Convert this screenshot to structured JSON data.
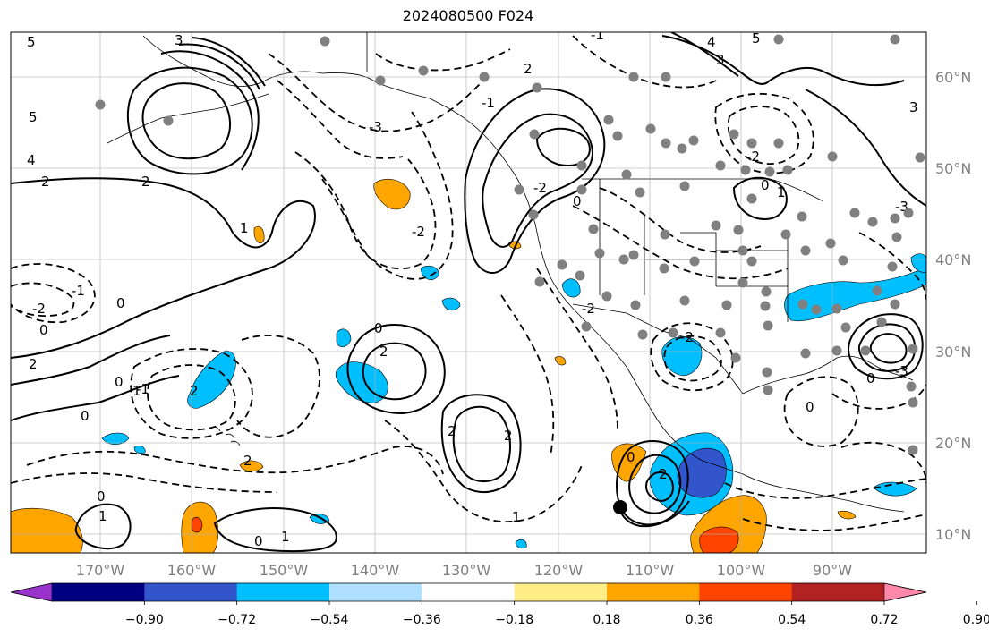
{
  "title": "2024080500 F024",
  "map": {
    "lat_labels": [
      "60°N",
      "50°N",
      "40°N",
      "30°N",
      "20°N",
      "10°N"
    ],
    "lon_labels": [
      "170°W",
      "160°W",
      "150°W",
      "140°W",
      "130°W",
      "120°W",
      "110°W",
      "100°W",
      "90°W"
    ],
    "station_color": "#808080",
    "marker_color": "#000000",
    "contour_labels": [
      "5",
      "4",
      "3",
      "2",
      "1",
      "0",
      "-1",
      "-2",
      "-3"
    ]
  },
  "colorbar": {
    "colors": [
      "#9933cc",
      "#000080",
      "#3355cc",
      "#00bfff",
      "#b0e0ff",
      "#ffffff",
      "#ffee88",
      "#ffa500",
      "#ff4400",
      "#b22222",
      "#ff88aa"
    ],
    "tick_labels": [
      "−0.90",
      "−0.72",
      "−0.54",
      "−0.36",
      "−0.18",
      "0.18",
      "0.36",
      "0.54",
      "0.72",
      "0.90"
    ]
  }
}
